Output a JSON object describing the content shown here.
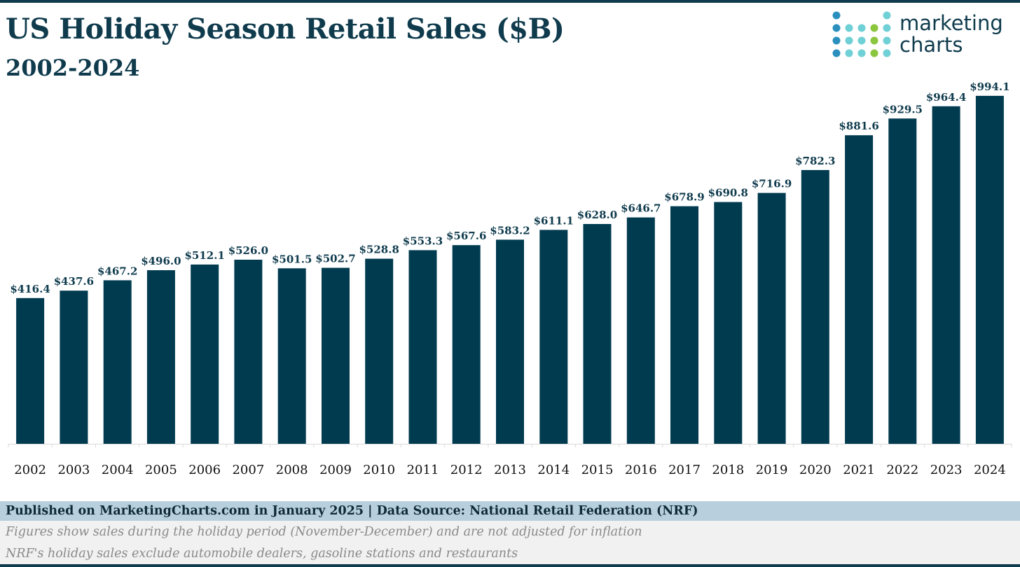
{
  "header": {
    "title": "US Holiday Season Retail Sales ($B)",
    "subtitle": "2002-2024"
  },
  "logo": {
    "line1": "marketing",
    "line2": "charts",
    "colors": {
      "dark_blue": "#2a8fbd",
      "teal": "#6fd0d6",
      "green": "#8cc63f"
    }
  },
  "chart_data": {
    "type": "bar",
    "title": "US Holiday Season Retail Sales ($B)",
    "subtitle": "2002-2024",
    "categories": [
      "2002",
      "2003",
      "2004",
      "2005",
      "2006",
      "2007",
      "2008",
      "2009",
      "2010",
      "2011",
      "2012",
      "2013",
      "2014",
      "2015",
      "2016",
      "2017",
      "2018",
      "2019",
      "2020",
      "2021",
      "2022",
      "2023",
      "2024"
    ],
    "values": [
      416.4,
      437.6,
      467.2,
      496.0,
      512.1,
      526.0,
      501.5,
      502.7,
      528.8,
      553.3,
      567.6,
      583.2,
      611.1,
      628.0,
      646.7,
      678.9,
      690.8,
      716.9,
      782.3,
      881.6,
      929.5,
      964.4,
      994.1
    ],
    "data_label_prefix": "$",
    "data_label_decimals": 1,
    "ylim": [
      0,
      1000
    ],
    "y_axis_visible": false,
    "grid": false,
    "legend": "none",
    "bar_color": "#013b50"
  },
  "footer": {
    "source": "Published on MarketingCharts.com in January 2025 | Data Source: National Retail Federation (NRF)",
    "notes": [
      "Figures show sales during the holiday period (November-December) and are not adjusted for inflation",
      "NRF's holiday sales exclude automobile dealers, gasoline stations and restaurants"
    ]
  }
}
